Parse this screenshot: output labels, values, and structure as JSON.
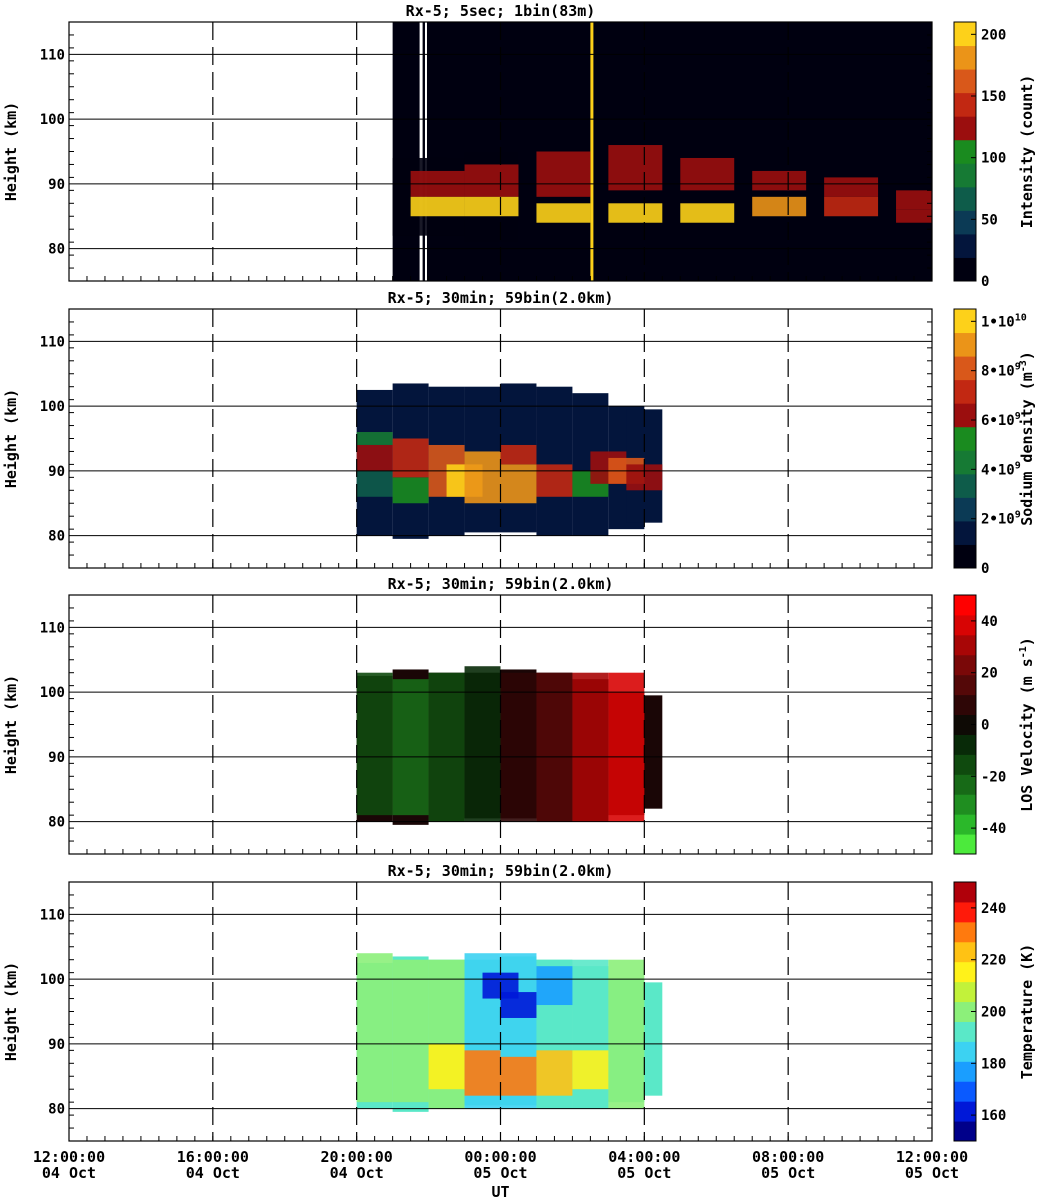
{
  "chart_data": [
    {
      "type": "heatmap",
      "title": "Rx-5;  5sec; 1bin(83m)",
      "ylabel": "Height (km)",
      "ylim": [
        75,
        115
      ],
      "yticks": [
        80,
        90,
        100,
        110
      ],
      "colorbar": {
        "label": "Intensity (count)",
        "range": [
          0,
          210
        ],
        "ticks": [
          {
            "v": 0,
            "t": "0"
          },
          {
            "v": 50,
            "t": "50"
          },
          {
            "v": 100,
            "t": "100"
          },
          {
            "v": 150,
            "t": "150"
          },
          {
            "v": 200,
            "t": "200"
          }
        ],
        "colors": [
          "#000010",
          "#03153c",
          "#0b3a55",
          "#0e5c4a",
          "#167a34",
          "#1a8b1f",
          "#9b0e0e",
          "#c22812",
          "#d9581a",
          "#eb9418",
          "#fdd11a"
        ]
      },
      "data_start_hour": 21,
      "data_end_hour": 38,
      "cells": [
        [
          21.0,
          82.0,
          94.0,
          0.03
        ],
        [
          22.0,
          82.0,
          94.0,
          0.03
        ],
        [
          23.0,
          81.0,
          95.0,
          0.03
        ],
        [
          21.5,
          88.0,
          92.0,
          0.62
        ],
        [
          23.0,
          88.0,
          93.0,
          0.62
        ],
        [
          25.0,
          88.0,
          95.0,
          0.62
        ],
        [
          27.0,
          89.0,
          96.0,
          0.62
        ],
        [
          29.0,
          89.0,
          94.0,
          0.62
        ],
        [
          31.0,
          89.0,
          92.0,
          0.62
        ],
        [
          33.0,
          88.0,
          91.0,
          0.62
        ],
        [
          35.0,
          86.0,
          89.0,
          0.62
        ],
        [
          37.0,
          84.0,
          88.0,
          0.62
        ],
        [
          21.5,
          85.0,
          88.0,
          0.92
        ],
        [
          23.0,
          85.0,
          88.0,
          0.92
        ],
        [
          25.0,
          84.0,
          87.0,
          0.97
        ],
        [
          27.0,
          84.0,
          87.0,
          0.97
        ],
        [
          29.0,
          84.0,
          87.0,
          0.97
        ],
        [
          31.0,
          85.0,
          88.0,
          0.82
        ],
        [
          33.0,
          85.0,
          88.0,
          0.72
        ],
        [
          35.0,
          84.0,
          86.0,
          0.62
        ]
      ]
    },
    {
      "type": "heatmap",
      "title": "Rx-5; 30min; 59bin(2.0km)",
      "ylabel": "Height (km)",
      "ylim": [
        75,
        115
      ],
      "yticks": [
        80,
        90,
        100,
        110
      ],
      "colorbar": {
        "label": "Sodium density",
        "unit_base": "m",
        "unit_exp": "-3",
        "range": [
          0,
          10500000000.0
        ],
        "ticks": [
          {
            "v": 0,
            "t": "0"
          },
          {
            "v": 2000000000.0,
            "t": "2•10",
            "e": "9"
          },
          {
            "v": 4000000000.0,
            "t": "4•10",
            "e": "9"
          },
          {
            "v": 6000000000.0,
            "t": "6•10",
            "e": "9"
          },
          {
            "v": 8000000000.0,
            "t": "8•10",
            "e": "9"
          },
          {
            "v": 10000000000.0,
            "t": "1•10",
            "e": "10"
          }
        ],
        "colors": [
          "#000010",
          "#03153c",
          "#0b3a55",
          "#0e5c4a",
          "#167a34",
          "#1a8b1f",
          "#9b0e0e",
          "#c22812",
          "#d9581a",
          "#eb9418",
          "#fdd11a"
        ]
      },
      "data_start_hour": 20,
      "data_end_hour": 28,
      "cells": [
        [
          20.0,
          86.0,
          90.0,
          0.28
        ],
        [
          20.0,
          90.0,
          94.0,
          0.55
        ],
        [
          20.0,
          94.0,
          96.0,
          0.42
        ],
        [
          21.0,
          85.0,
          89.0,
          0.5
        ],
        [
          21.0,
          89.0,
          95.0,
          0.68
        ],
        [
          22.0,
          86.0,
          94.0,
          0.78
        ],
        [
          22.5,
          86.0,
          91.0,
          0.94
        ],
        [
          23.0,
          85.0,
          93.0,
          0.86
        ],
        [
          24.0,
          85.0,
          91.0,
          0.84
        ],
        [
          24.0,
          91.0,
          94.0,
          0.68
        ],
        [
          25.0,
          86.0,
          91.0,
          0.68
        ],
        [
          26.0,
          86.0,
          90.0,
          0.5
        ],
        [
          26.5,
          88.0,
          93.0,
          0.6
        ],
        [
          27.0,
          88.0,
          92.0,
          0.74
        ],
        [
          27.5,
          87.0,
          91.0,
          0.6
        ]
      ]
    },
    {
      "type": "heatmap",
      "title": "Rx-5; 30min; 59bin(2.0km)",
      "ylabel": "LOS Velocity",
      "unit_base": "m s",
      "unit_exp": "-1",
      "ylim": [
        75,
        115
      ],
      "yticks": [
        80,
        90,
        100,
        110
      ],
      "colorbar": {
        "label": "LOS Velocity",
        "unit_base": "m s",
        "unit_exp": "-1",
        "range": [
          -50,
          50
        ],
        "ticks": [
          {
            "v": -40,
            "t": "-40"
          },
          {
            "v": -20,
            "t": "-20"
          },
          {
            "v": 0,
            "t": "0"
          },
          {
            "v": 20,
            "t": "20"
          },
          {
            "v": 40,
            "t": "40"
          }
        ],
        "colors": [
          "#4cea3c",
          "#2bb82a",
          "#1f8e20",
          "#176a17",
          "#0f4a0e",
          "#082a08",
          "#0e0a05",
          "#2e0606",
          "#540808",
          "#7a0808",
          "#a80606",
          "#d80404",
          "#ff0000"
        ]
      },
      "data_start_hour": 20,
      "data_end_hour": 28,
      "cells": [
        [
          20.0,
          81.0,
          103.0,
          0.36
        ],
        [
          21.0,
          81.0,
          102.0,
          0.28
        ],
        [
          22.0,
          80.0,
          103.0,
          0.32
        ],
        [
          23.0,
          80.0,
          104.0,
          0.4
        ],
        [
          24.0,
          80.0,
          103.0,
          0.55
        ],
        [
          25.0,
          80.0,
          103.0,
          0.68
        ],
        [
          26.0,
          80.0,
          103.0,
          0.82
        ],
        [
          27.0,
          80.0,
          103.0,
          0.92
        ]
      ]
    },
    {
      "type": "heatmap",
      "title": "Rx-5; 30min; 59bin(2.0km)",
      "ylabel": "Height (km)",
      "ylim": [
        75,
        115
      ],
      "yticks": [
        80,
        90,
        100,
        110
      ],
      "colorbar": {
        "label": "Temperature (K)",
        "range": [
          150,
          250
        ],
        "ticks": [
          {
            "v": 160,
            "t": "160"
          },
          {
            "v": 180,
            "t": "180"
          },
          {
            "v": 200,
            "t": "200"
          },
          {
            "v": 220,
            "t": "220"
          },
          {
            "v": 240,
            "t": "240"
          }
        ],
        "colors": [
          "#00008a",
          "#0018d8",
          "#0a5aff",
          "#1a9eff",
          "#3cd2f2",
          "#5ae8c8",
          "#8cf07a",
          "#c2f23a",
          "#fff21a",
          "#ffc214",
          "#ff7a0e",
          "#ff1a0a",
          "#b0000a"
        ]
      },
      "data_start_hour": 20,
      "data_end_hour": 28,
      "cells": [
        [
          20.0,
          81.0,
          104.0,
          0.48
        ],
        [
          21.0,
          81.0,
          103.0,
          0.5
        ],
        [
          22.0,
          80.0,
          103.0,
          0.48
        ],
        [
          23.0,
          80.0,
          104.0,
          0.38
        ],
        [
          24.0,
          80.0,
          104.0,
          0.36
        ],
        [
          25.0,
          80.0,
          103.0,
          0.45
        ],
        [
          26.0,
          80.0,
          103.0,
          0.45
        ],
        [
          27.0,
          80.0,
          103.0,
          0.48
        ],
        [
          23.5,
          97.0,
          101.0,
          0.14
        ],
        [
          24.0,
          94.0,
          98.0,
          0.08
        ],
        [
          25.0,
          96.0,
          102.0,
          0.24
        ],
        [
          22.0,
          83.0,
          90.0,
          0.66
        ],
        [
          23.0,
          82.0,
          89.0,
          0.78
        ],
        [
          24.0,
          82.0,
          88.0,
          0.84
        ],
        [
          25.0,
          82.0,
          89.0,
          0.72
        ],
        [
          26.0,
          83.0,
          89.0,
          0.62
        ]
      ]
    }
  ],
  "xaxis": {
    "label": "UT",
    "xlim": [
      12,
      36
    ],
    "ticks": [
      {
        "x": 12,
        "line1": "12:00:00",
        "line2": "04 Oct"
      },
      {
        "x": 16,
        "line1": "16:00:00",
        "line2": "04 Oct"
      },
      {
        "x": 20,
        "line1": "20:00:00",
        "line2": "04 Oct"
      },
      {
        "x": 24,
        "line1": "00:00:00",
        "line2": "05 Oct"
      },
      {
        "x": 28,
        "line1": "04:00:00",
        "line2": "05 Oct"
      },
      {
        "x": 32,
        "line1": "08:00:00",
        "line2": "05 Oct"
      },
      {
        "x": 36,
        "line1": "12:00:00",
        "line2": "05 Oct"
      }
    ]
  }
}
